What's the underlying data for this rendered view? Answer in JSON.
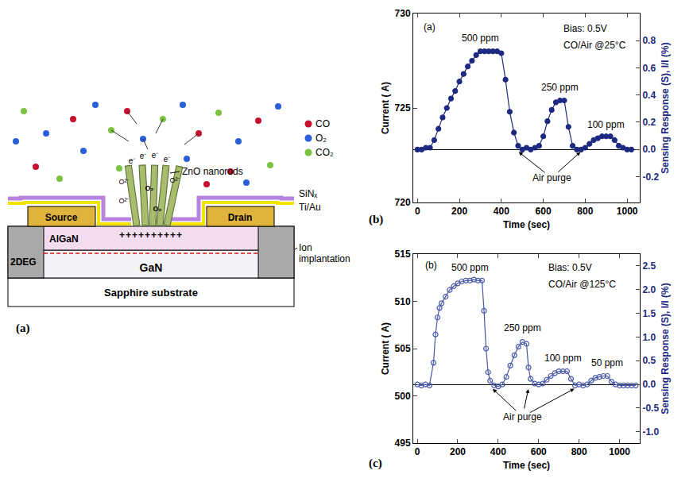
{
  "diagram": {
    "label": "(a)",
    "legend": [
      {
        "name": "CO",
        "color": "#c8102e"
      },
      {
        "name": "O₂",
        "color": "#2b5fd9"
      },
      {
        "name": "CO₂",
        "color": "#7cc242"
      }
    ],
    "layers": {
      "source": "Source",
      "drain": "Drain",
      "algan": "AlGaN",
      "twodeg": "2DEG",
      "gan": "GaN",
      "substrate": "Sapphire substrate"
    },
    "callouts": {
      "rods": "ZnO nanorods",
      "sinx": "SiNₓ",
      "metal": "Ti/Au",
      "implant": "Ion implantation"
    },
    "charges": "++++++++++",
    "electron": "e⁻",
    "ion": "O²⁻",
    "adsorbed": "O₂"
  },
  "chart_data": [
    {
      "type": "line",
      "panel": "(b)",
      "xlabel": "Time (sec)",
      "ylabel": "Current ( A)",
      "y2label": "Sensing Response (S), I/I (%)",
      "x": [
        0,
        20,
        40,
        60,
        80,
        100,
        120,
        140,
        160,
        180,
        200,
        220,
        240,
        260,
        280,
        300,
        320,
        340,
        360,
        380,
        400,
        420,
        440,
        460,
        480,
        500,
        520,
        540,
        560,
        580,
        600,
        620,
        640,
        660,
        680,
        700,
        720,
        740,
        760,
        780,
        800,
        820,
        840,
        860,
        880,
        900,
        920,
        940,
        960,
        980,
        1000,
        1020
      ],
      "series": [
        {
          "color": "#1c2a80",
          "marker": "circle",
          "values": [
            722.8,
            722.8,
            722.9,
            722.9,
            723.3,
            723.9,
            724.5,
            725.0,
            725.5,
            725.9,
            726.4,
            726.8,
            727.2,
            727.5,
            727.8,
            728.0,
            728.0,
            728.0,
            728.0,
            728.0,
            727.9,
            726.5,
            724.8,
            723.7,
            723.0,
            722.8,
            722.9,
            722.8,
            722.9,
            723.0,
            723.5,
            724.3,
            724.9,
            725.3,
            725.4,
            725.4,
            724.0,
            723.0,
            722.8,
            722.8,
            722.9,
            723.1,
            723.3,
            723.4,
            723.5,
            723.5,
            723.5,
            723.3,
            723.0,
            722.9,
            722.8,
            722.8
          ]
        }
      ],
      "xlim": [
        -20,
        1060
      ],
      "xticks": [
        0,
        200,
        400,
        600,
        800,
        1000
      ],
      "ylim": [
        720,
        730
      ],
      "yticks": [
        720,
        725,
        730
      ],
      "y2lim": [
        -0.39,
        1.0
      ],
      "y2ticks": [
        -0.2,
        {
          "value": 0,
          "label": "0.0"
        },
        0.2,
        0.4,
        0.6,
        0.8
      ],
      "annotations": [
        {
          "text": "(a)",
          "x": 20,
          "y": 729.3
        },
        {
          "text": "500 ppm",
          "x": 300,
          "y": 728.7
        },
        {
          "text": "250 ppm",
          "x": 680,
          "y": 726.1
        },
        {
          "text": "100 ppm",
          "x": 900,
          "y": 724.1
        },
        {
          "text": "Bias: 0.5V",
          "x": 690,
          "y": 729.2
        },
        {
          "text": "CO/Air @25°C",
          "x": 690,
          "y": 728.3
        },
        {
          "text": "Air purge",
          "x": 640,
          "y": 721.3,
          "arrows": [
            [
              480,
              722.7
            ],
            [
              780,
              722.7
            ]
          ]
        }
      ]
    },
    {
      "type": "line",
      "panel": "(c)",
      "xlabel": "Time (sec)",
      "ylabel": "Current ( A)",
      "y2label": "Sensing Response (S), I/I (%)",
      "x": [
        0,
        20,
        40,
        60,
        80,
        90,
        100,
        110,
        120,
        140,
        160,
        180,
        200,
        220,
        240,
        260,
        280,
        300,
        320,
        330,
        340,
        350,
        360,
        380,
        400,
        420,
        440,
        460,
        480,
        500,
        520,
        540,
        550,
        560,
        580,
        600,
        620,
        640,
        660,
        680,
        700,
        720,
        740,
        760,
        780,
        800,
        820,
        840,
        860,
        880,
        900,
        920,
        940,
        960,
        980,
        1000,
        1020,
        1040,
        1060,
        1080
      ],
      "series": [
        {
          "color": "#4a5aa8",
          "marker": "circle-open",
          "values": [
            501.2,
            501.1,
            501.2,
            501.1,
            503.5,
            506.5,
            508.3,
            509.3,
            509.8,
            510.5,
            511.2,
            511.6,
            511.9,
            512.1,
            512.2,
            512.2,
            512.3,
            512.2,
            512.2,
            509.0,
            505.0,
            502.5,
            501.6,
            501.1,
            501.0,
            501.2,
            502.0,
            503.2,
            504.3,
            505.2,
            505.7,
            505.5,
            503.0,
            501.8,
            501.3,
            501.2,
            501.3,
            501.7,
            502.1,
            502.4,
            502.6,
            502.6,
            502.6,
            501.8,
            501.1,
            501.2,
            501.1,
            501.2,
            501.6,
            501.9,
            502.0,
            502.1,
            502.1,
            501.5,
            501.2,
            501.1,
            501.1,
            501.1,
            501.1,
            501.1
          ]
        }
      ],
      "xlim": [
        -20,
        1100
      ],
      "xticks": [
        0,
        200,
        400,
        600,
        800,
        1000
      ],
      "ylim": [
        495,
        515
      ],
      "yticks": [
        495,
        500,
        505,
        510,
        515
      ],
      "y2lim": [
        -1.24,
        2.75
      ],
      "y2ticks": [
        {
          "value": -1,
          "label": "-1.0"
        },
        -0.5,
        {
          "value": 0,
          "label": "0.0"
        },
        0.5,
        {
          "value": 1,
          "label": "1.0"
        },
        1.5,
        {
          "value": 2,
          "label": "2.0"
        },
        2.5
      ],
      "annotations": [
        {
          "text": "(b)",
          "x": 30,
          "y": 513.8
        },
        {
          "text": "500 ppm",
          "x": 260,
          "y": 513.6
        },
        {
          "text": "250 ppm",
          "x": 520,
          "y": 507.2
        },
        {
          "text": "100 ppm",
          "x": 720,
          "y": 504.0
        },
        {
          "text": "50 ppm",
          "x": 940,
          "y": 503.5
        },
        {
          "text": "Bias: 0.5V",
          "x": 640,
          "y": 513.6
        },
        {
          "text": "CO/Air @125°C",
          "x": 640,
          "y": 511.8
        },
        {
          "text": "Air purge",
          "x": 520,
          "y": 497.8,
          "arrows": [
            [
              370,
              500.8
            ],
            [
              550,
              500.8
            ],
            [
              780,
              500.8
            ]
          ]
        }
      ]
    }
  ]
}
